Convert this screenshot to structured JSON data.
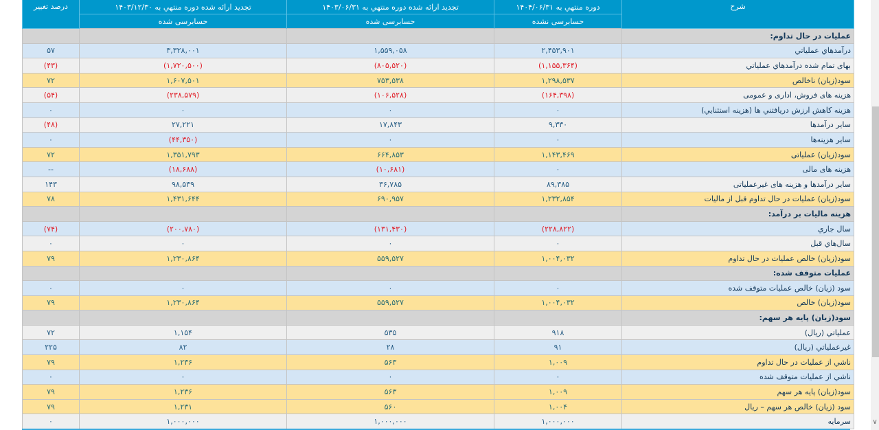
{
  "table": {
    "headers": {
      "description": "شرح",
      "col_current": "دوره منتهي به ۱۴۰۴/۰۶/۳۱",
      "col_current_status": "حسابرسی نشده",
      "col_prev_half": "تجدید ارائه شده دوره منتهي به ۱۴۰۳/۰۶/۳۱",
      "col_prev_half_status": "حسابرسی شده",
      "col_prev_year": "تجدید ارائه شده دوره منتهي به ۱۴۰۳/۱۲/۳۰",
      "col_prev_year_status": "حسابرسی شده",
      "change_percent": "درصد تغییر"
    },
    "rows": [
      {
        "type": "section",
        "label": "عملیات در حال تداوم:",
        "c1": "",
        "c2": "",
        "c3": "",
        "pct": ""
      },
      {
        "type": "blue",
        "label": "درآمدهاي عملياتي",
        "c1": "۲,۴۵۳,۹۰۱",
        "c2": "۱,۵۵۹,۰۵۸",
        "c3": "۳,۳۲۸,۰۰۱",
        "pct": "۵۷"
      },
      {
        "type": "gray",
        "label": "بهاى تمام شده درآمدهاي عملياتي",
        "c1": "(۱,۱۵۵,۳۶۴)",
        "c2": "(۸۰۵,۵۲۰)",
        "c3": "(۱,۷۲۰,۵۰۰)",
        "pct": "(۴۳)"
      },
      {
        "type": "yellow",
        "label": "سود(زيان) ناخالص",
        "c1": "۱,۲۹۸,۵۳۷",
        "c2": "۷۵۳,۵۳۸",
        "c3": "۱,۶۰۷,۵۰۱",
        "pct": "۷۲"
      },
      {
        "type": "gray",
        "label": "هزينه هاى فروش، ادارى و عمومى",
        "c1": "(۱۶۴,۳۹۸)",
        "c2": "(۱۰۶,۵۲۸)",
        "c3": "(۲۳۸,۵۷۹)",
        "pct": "(۵۴)"
      },
      {
        "type": "blue",
        "label": "هزينه کاهش ارزش دريافتني ها (هزينه استثنايي)",
        "c1": "۰",
        "c2": "۰",
        "c3": "۰",
        "pct": "۰"
      },
      {
        "type": "gray",
        "label": "ساير درآمدها",
        "c1": "۹,۳۳۰",
        "c2": "۱۷,۸۴۳",
        "c3": "۲۷,۲۲۱",
        "pct": "(۴۸)"
      },
      {
        "type": "blue",
        "label": "ساير هزينه‌ها",
        "c1": "۰",
        "c2": "۰",
        "c3": "(۴۴,۳۵۰)",
        "pct": "۰"
      },
      {
        "type": "yellow",
        "label": "سود(زيان) عملياتى",
        "c1": "۱,۱۴۳,۴۶۹",
        "c2": "۶۶۴,۸۵۳",
        "c3": "۱,۳۵۱,۷۹۳",
        "pct": "۷۲"
      },
      {
        "type": "blue",
        "label": "هزينه هاى مالى",
        "c1": "۰",
        "c2": "(۱۰,۶۸۱)",
        "c3": "(۱۸,۶۸۸)",
        "pct": "--"
      },
      {
        "type": "gray",
        "label": "ساير درآمدها و هزينه هاى غيرعملياتى",
        "c1": "۸۹,۳۸۵",
        "c2": "۳۶,۷۸۵",
        "c3": "۹۸,۵۳۹",
        "pct": "۱۴۳"
      },
      {
        "type": "yellow",
        "label": "سود(زيان) عمليات در حال تداوم قبل از ماليات",
        "c1": "۱,۲۳۲,۸۵۴",
        "c2": "۶۹۰,۹۵۷",
        "c3": "۱,۴۳۱,۶۴۴",
        "pct": "۷۸"
      },
      {
        "type": "section",
        "label": "هزينه ماليات بر درآمد:",
        "c1": "",
        "c2": "",
        "c3": "",
        "pct": ""
      },
      {
        "type": "blue",
        "label": "سال جاري",
        "c1": "(۲۲۸,۸۲۲)",
        "c2": "(۱۳۱,۴۳۰)",
        "c3": "(۲۰۰,۷۸۰)",
        "pct": "(۷۴)"
      },
      {
        "type": "gray",
        "label": "سال‌هاي قبل",
        "c1": "۰",
        "c2": "۰",
        "c3": "۰",
        "pct": "۰"
      },
      {
        "type": "yellow",
        "label": "سود(زيان) خالص عمليات در حال تداوم",
        "c1": "۱,۰۰۴,۰۳۲",
        "c2": "۵۵۹,۵۲۷",
        "c3": "۱,۲۳۰,۸۶۴",
        "pct": "۷۹"
      },
      {
        "type": "section",
        "label": "عمليات متوقف شده:",
        "c1": "",
        "c2": "",
        "c3": "",
        "pct": ""
      },
      {
        "type": "blue",
        "label": "سود (زيان) خالص عمليات متوقف شده",
        "c1": "۰",
        "c2": "۰",
        "c3": "۰",
        "pct": "۰"
      },
      {
        "type": "yellow",
        "label": "سود(زيان) خالص",
        "c1": "۱,۰۰۴,۰۳۲",
        "c2": "۵۵۹,۵۲۷",
        "c3": "۱,۲۳۰,۸۶۴",
        "pct": "۷۹"
      },
      {
        "type": "section",
        "label": "سود(زيان) پايه هر سهم:",
        "c1": "",
        "c2": "",
        "c3": "",
        "pct": ""
      },
      {
        "type": "gray",
        "label": "عملياتي (ريال)",
        "c1": "۹۱۸",
        "c2": "۵۳۵",
        "c3": "۱,۱۵۴",
        "pct": "۷۲"
      },
      {
        "type": "blue",
        "label": "غيرعملياتي (ريال)",
        "c1": "۹۱",
        "c2": "۲۸",
        "c3": "۸۲",
        "pct": "۲۲۵"
      },
      {
        "type": "yellow",
        "label": "ناشي از عمليات در حال تداوم",
        "c1": "۱,۰۰۹",
        "c2": "۵۶۳",
        "c3": "۱,۲۳۶",
        "pct": "۷۹"
      },
      {
        "type": "blue",
        "label": "ناشي از عمليات متوقف شده",
        "c1": "۰",
        "c2": "۰",
        "c3": "۰",
        "pct": "۰"
      },
      {
        "type": "yellow",
        "label": "سود(زيان) پايه هر سهم",
        "c1": "۱,۰۰۹",
        "c2": "۵۶۳",
        "c3": "۱,۲۳۶",
        "pct": "۷۹"
      },
      {
        "type": "yellow",
        "label": "سود (زيان) خالص هر سهم – ريال",
        "c1": "۱,۰۰۴",
        "c2": "۵۶۰",
        "c3": "۱,۲۳۱",
        "pct": "۷۹"
      },
      {
        "type": "gray",
        "label": "سرمايه",
        "c1": "۱,۰۰۰,۰۰۰",
        "c2": "۱,۰۰۰,۰۰۰",
        "c3": "۱,۰۰۰,۰۰۰",
        "pct": "۰"
      }
    ]
  },
  "colors": {
    "header_bg": "#0098cc",
    "section_bg": "#d4d4d4",
    "blue_row_bg": "#d4e5f5",
    "gray_row_bg": "#efefef",
    "yellow_row_bg": "#fde29a",
    "negative_text": "#e0202a",
    "value_text": "#2a5f86"
  }
}
